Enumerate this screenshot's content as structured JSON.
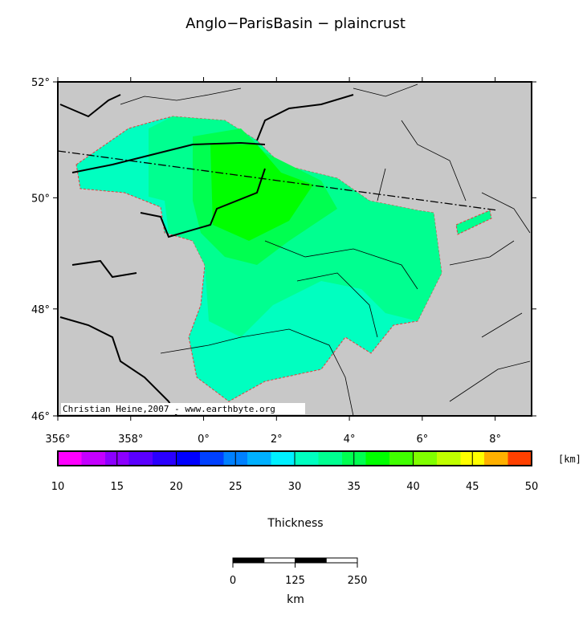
{
  "title": "Anglo−ParisBasin − plaincrust",
  "map": {
    "lonlim": [
      -4,
      9
    ],
    "latlim": [
      46,
      52
    ],
    "lonticks": [
      {
        "value": -4,
        "label": "356°"
      },
      {
        "value": -2,
        "label": "358°"
      },
      {
        "value": 0,
        "label": "0°"
      },
      {
        "value": 2,
        "label": "2°"
      },
      {
        "value": 4,
        "label": "4°"
      },
      {
        "value": 6,
        "label": "6°"
      },
      {
        "value": 8,
        "label": "8°"
      }
    ],
    "latticks": [
      {
        "value": 52,
        "label": "52°"
      },
      {
        "value": 50,
        "label": "50°"
      },
      {
        "value": 48,
        "label": "48°"
      },
      {
        "value": 46,
        "label": "46°"
      }
    ],
    "credit": "Christian Heine,2007 - www.earthbyte.org"
  },
  "colorbar": {
    "lim": [
      10,
      50
    ],
    "ticks": [
      10,
      15,
      20,
      25,
      30,
      35,
      40,
      45,
      50
    ],
    "colors": [
      "#ff00ff",
      "#c400ff",
      "#8c00ff",
      "#5a00ff",
      "#2a00ff",
      "#0000ff",
      "#0040ff",
      "#0080ff",
      "#00b0ff",
      "#00f0ff",
      "#00ffc0",
      "#00ff90",
      "#00ff50",
      "#00ff00",
      "#40ff00",
      "#80ff00",
      "#c0ff00",
      "#ffff00",
      "#ffb000",
      "#ff4000"
    ],
    "unit": "[km]",
    "label": "Thickness"
  },
  "scale_bar": {
    "lim": [
      0,
      250
    ],
    "ticks": [
      0,
      125,
      250
    ],
    "unit": "km"
  }
}
